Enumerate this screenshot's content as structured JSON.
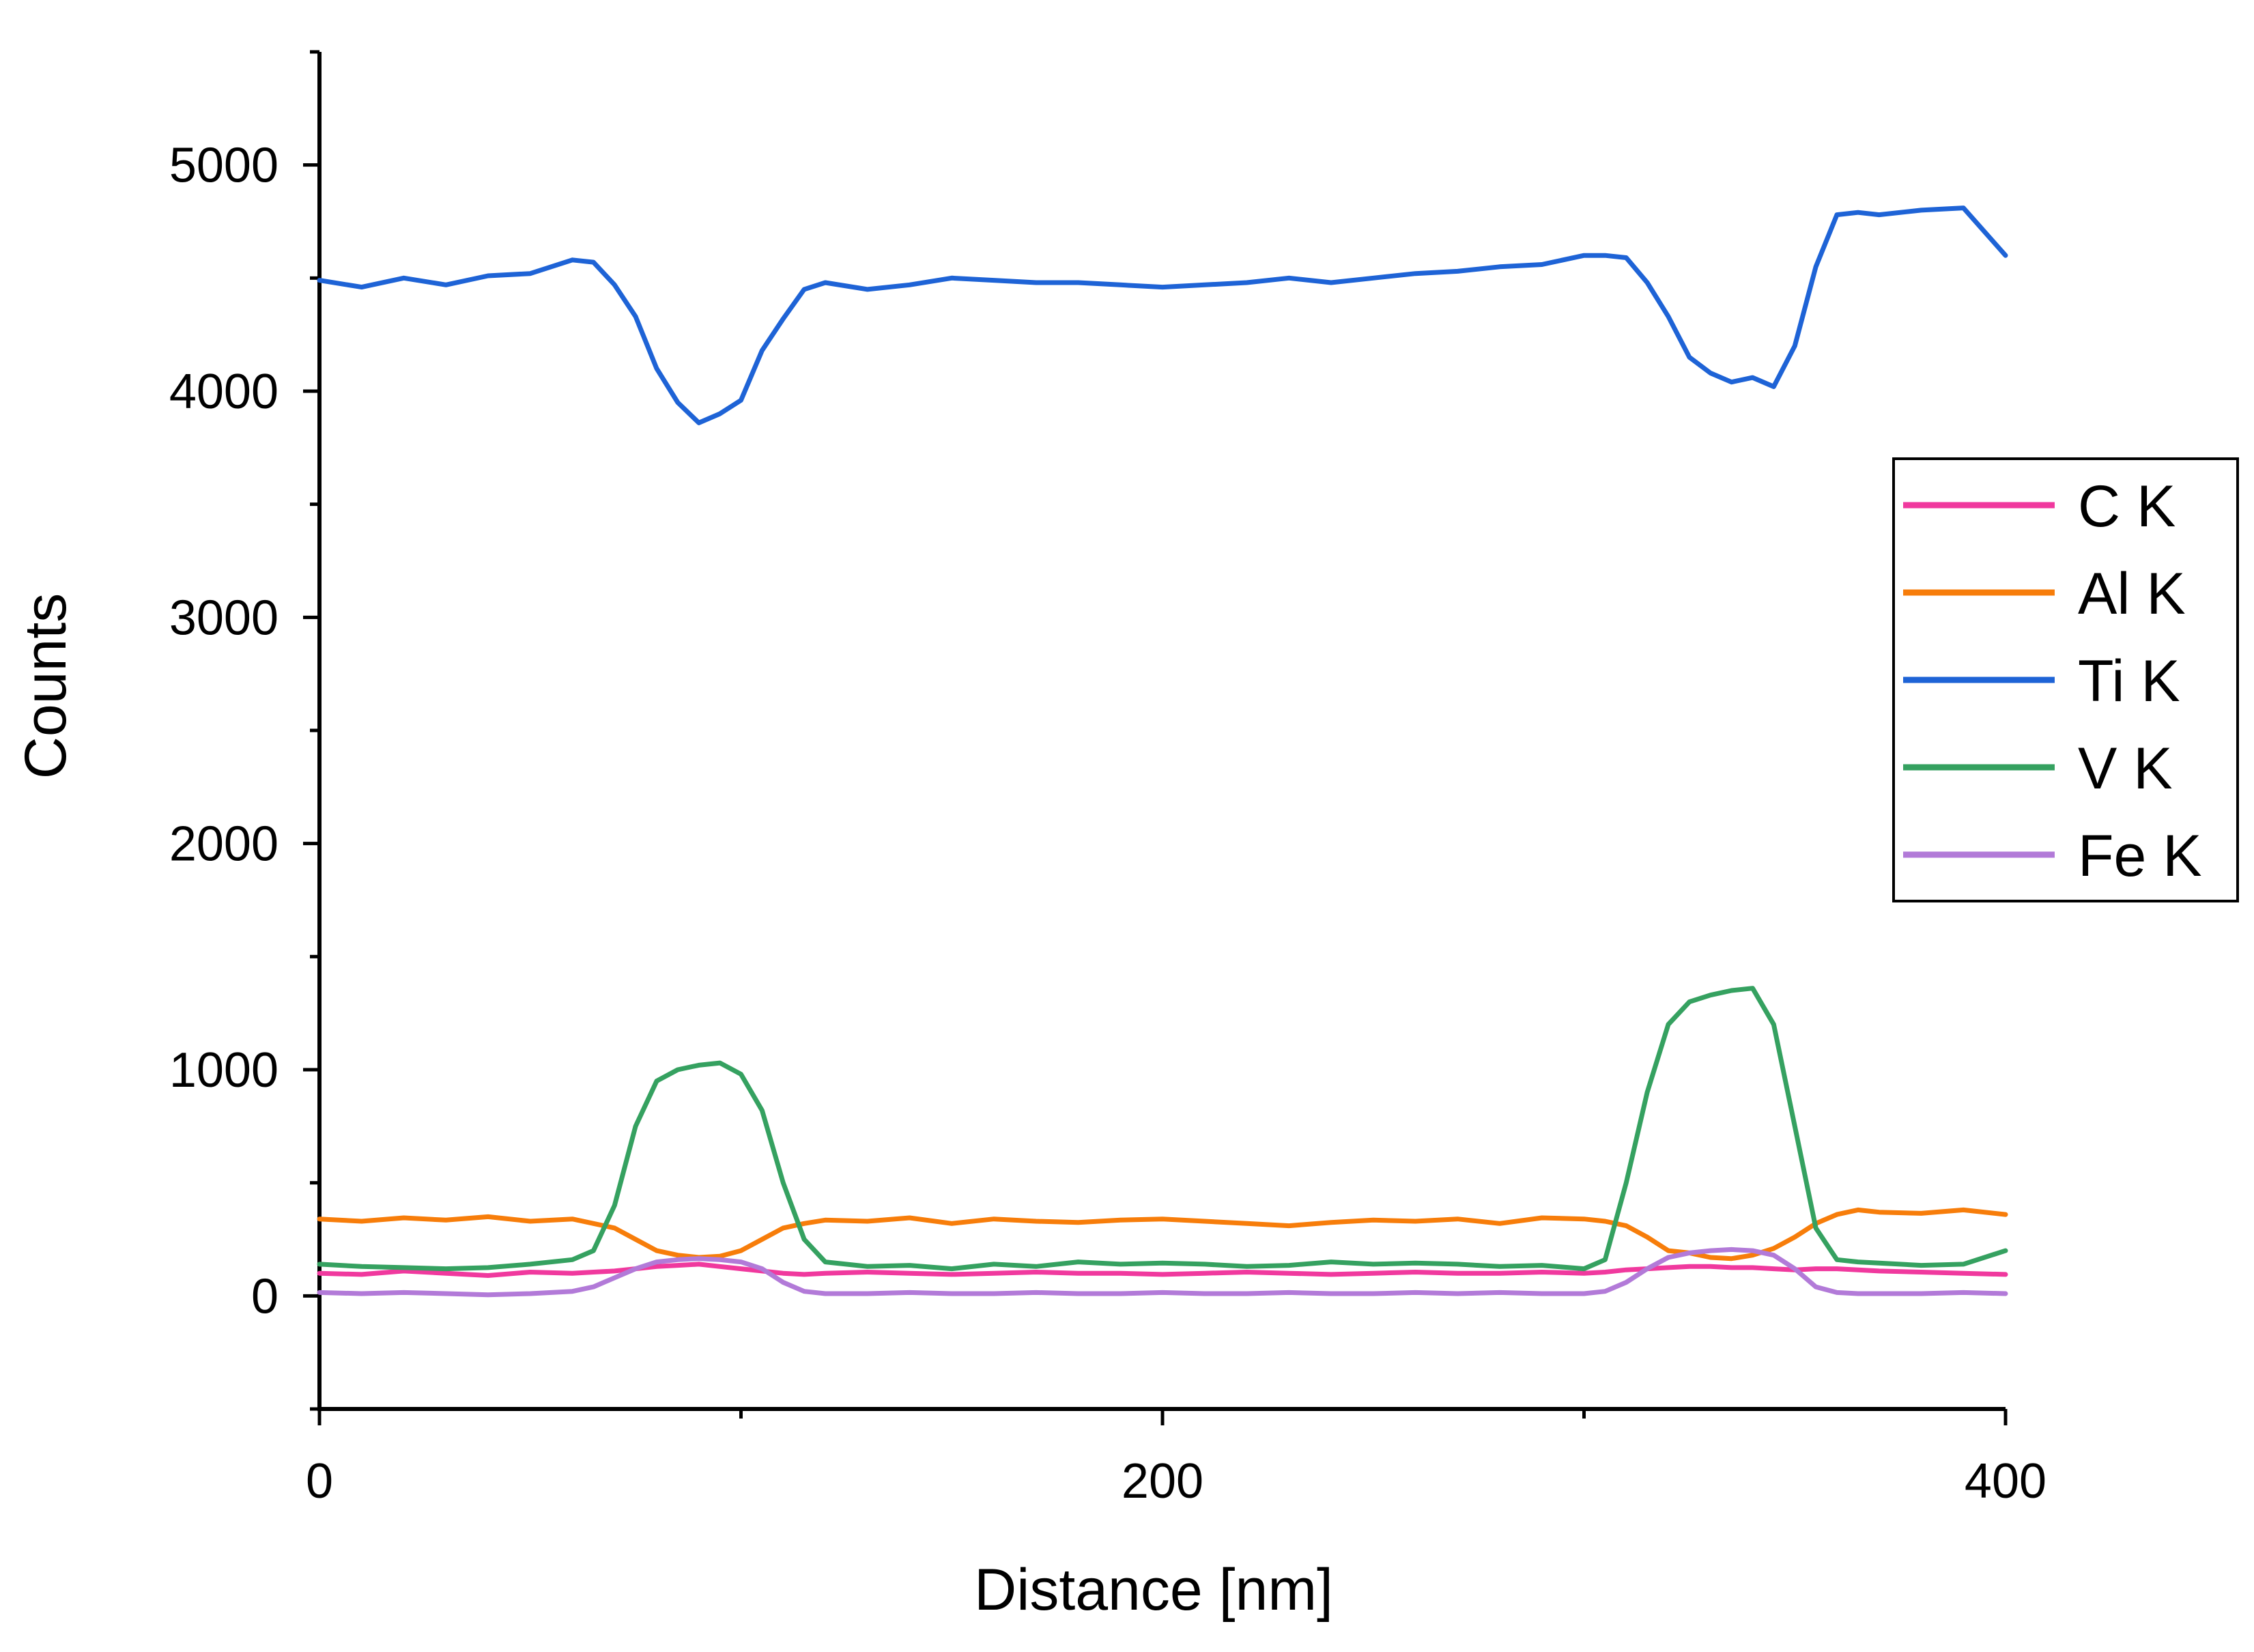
{
  "chart_data": {
    "type": "line",
    "xlabel": "Distance [nm]",
    "ylabel": "Counts",
    "xlim": [
      0,
      400
    ],
    "ylim": [
      -500,
      5500
    ],
    "x_ticks": [
      "0",
      "200",
      "400"
    ],
    "y_ticks": [
      "0",
      "1000",
      "2000",
      "3000",
      "4000",
      "5000"
    ],
    "x_tick_values": [
      0,
      200,
      400
    ],
    "y_tick_values": [
      0,
      1000,
      2000,
      3000,
      4000,
      5000
    ],
    "x_minor_tick_values": [
      100,
      300
    ],
    "y_minor_tick_values": [
      -500,
      500,
      1500,
      2500,
      3500,
      4500,
      5500
    ],
    "grid": false,
    "legend_position": "right",
    "x": [
      0,
      10,
      20,
      30,
      40,
      50,
      60,
      65,
      70,
      75,
      80,
      85,
      90,
      95,
      100,
      105,
      110,
      115,
      120,
      130,
      140,
      150,
      160,
      170,
      180,
      190,
      200,
      210,
      220,
      230,
      240,
      250,
      260,
      270,
      280,
      290,
      300,
      305,
      310,
      315,
      320,
      325,
      330,
      335,
      340,
      345,
      350,
      355,
      360,
      365,
      370,
      380,
      390,
      400
    ],
    "series": [
      {
        "name": "C K",
        "color": "#f0399e",
        "values": [
          100,
          95,
          110,
          100,
          90,
          105,
          100,
          105,
          110,
          120,
          130,
          135,
          140,
          130,
          120,
          110,
          100,
          95,
          100,
          105,
          100,
          95,
          100,
          105,
          100,
          100,
          95,
          100,
          105,
          100,
          95,
          100,
          105,
          100,
          100,
          105,
          100,
          105,
          115,
          120,
          125,
          130,
          130,
          125,
          125,
          120,
          115,
          120,
          120,
          115,
          110,
          105,
          100,
          95
        ]
      },
      {
        "name": "Al K",
        "color": "#f77d0a",
        "values": [
          340,
          330,
          345,
          335,
          350,
          330,
          340,
          320,
          300,
          250,
          200,
          180,
          170,
          175,
          200,
          250,
          300,
          320,
          335,
          330,
          345,
          320,
          340,
          330,
          325,
          335,
          340,
          330,
          320,
          310,
          325,
          335,
          330,
          340,
          320,
          345,
          340,
          330,
          310,
          260,
          200,
          190,
          170,
          165,
          180,
          210,
          260,
          320,
          360,
          380,
          370,
          365,
          380,
          360
        ]
      },
      {
        "name": "Ti K",
        "color": "#1e63d6",
        "values": [
          4490,
          4460,
          4500,
          4470,
          4510,
          4520,
          4580,
          4570,
          4470,
          4330,
          4100,
          3950,
          3860,
          3900,
          3960,
          4180,
          4320,
          4450,
          4480,
          4450,
          4470,
          4500,
          4490,
          4480,
          4480,
          4470,
          4460,
          4470,
          4480,
          4500,
          4480,
          4500,
          4520,
          4530,
          4550,
          4560,
          4600,
          4600,
          4590,
          4480,
          4330,
          4150,
          4080,
          4040,
          4060,
          4020,
          4200,
          4550,
          4780,
          4790,
          4780,
          4800,
          4810,
          4600
        ]
      },
      {
        "name": "V K",
        "color": "#35a160",
        "values": [
          140,
          130,
          125,
          120,
          125,
          140,
          160,
          200,
          400,
          750,
          950,
          1000,
          1020,
          1030,
          980,
          820,
          500,
          250,
          150,
          130,
          135,
          120,
          140,
          130,
          150,
          140,
          145,
          140,
          130,
          135,
          150,
          140,
          145,
          140,
          130,
          135,
          120,
          160,
          500,
          900,
          1200,
          1300,
          1330,
          1350,
          1360,
          1200,
          750,
          300,
          160,
          150,
          145,
          135,
          140,
          200
        ]
      },
      {
        "name": "Fe K",
        "color": "#b27ad8",
        "values": [
          15,
          10,
          15,
          10,
          5,
          10,
          20,
          40,
          80,
          120,
          150,
          160,
          165,
          160,
          150,
          120,
          60,
          20,
          10,
          10,
          15,
          10,
          10,
          15,
          10,
          10,
          15,
          10,
          10,
          15,
          10,
          10,
          15,
          10,
          15,
          10,
          10,
          20,
          60,
          120,
          170,
          190,
          200,
          205,
          200,
          180,
          120,
          40,
          15,
          10,
          10,
          10,
          15,
          10
        ]
      }
    ]
  }
}
